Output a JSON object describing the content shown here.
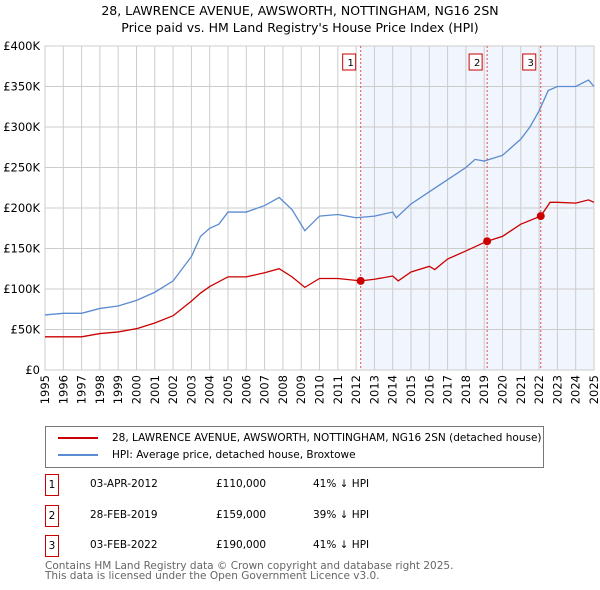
{
  "chart_data": {
    "type": "line",
    "title": "28, LAWRENCE AVENUE, AWSWORTH, NOTTINGHAM, NG16 2SN",
    "subtitle": "Price paid vs. HM Land Registry's House Price Index (HPI)",
    "xlim": [
      1995,
      2025
    ],
    "ylim": [
      0,
      400000
    ],
    "x_ticks": [
      "1995",
      "1996",
      "1997",
      "1998",
      "1999",
      "2000",
      "2001",
      "2002",
      "2003",
      "2004",
      "2005",
      "2006",
      "2007",
      "2008",
      "2009",
      "2010",
      "2011",
      "2012",
      "2013",
      "2014",
      "2015",
      "2016",
      "2017",
      "2018",
      "2019",
      "2020",
      "2021",
      "2022",
      "2023",
      "2024",
      "2025"
    ],
    "y_ticks": [
      {
        "v": 0,
        "l": "£0"
      },
      {
        "v": 50000,
        "l": "£50K"
      },
      {
        "v": 100000,
        "l": "£100K"
      },
      {
        "v": 150000,
        "l": "£150K"
      },
      {
        "v": 200000,
        "l": "£200K"
      },
      {
        "v": 250000,
        "l": "£250K"
      },
      {
        "v": 300000,
        "l": "£300K"
      },
      {
        "v": 350000,
        "l": "£350K"
      },
      {
        "v": 400000,
        "l": "£400K"
      }
    ],
    "grid": true,
    "series": [
      {
        "name": "28, LAWRENCE AVENUE, AWSWORTH, NOTTINGHAM, NG16 2SN (detached house)",
        "color": "#cc0000",
        "x": [
          1995,
          1996,
          1997,
          1998,
          1999,
          2000,
          2001,
          2002,
          2003,
          2003.5,
          2004,
          2005,
          2006,
          2007,
          2007.8,
          2008.5,
          2009.2,
          2010,
          2011,
          2012.25,
          2013,
          2014,
          2014.3,
          2015,
          2016,
          2016.3,
          2017,
          2018,
          2019.16,
          2020,
          2021,
          2022.09,
          2022.6,
          2023,
          2024,
          2024.7,
          2025
        ],
        "y": [
          41000,
          41000,
          41000,
          45000,
          47000,
          51000,
          58000,
          67000,
          85000,
          95000,
          103000,
          115000,
          115000,
          120000,
          125000,
          115000,
          102000,
          113000,
          113000,
          110000,
          112000,
          116000,
          110000,
          121000,
          128000,
          124000,
          137000,
          147000,
          159000,
          165000,
          180000,
          190000,
          207000,
          207000,
          206000,
          210000,
          207000
        ]
      },
      {
        "name": "HPI: Average price, detached house, Broxtowe",
        "color": "#5b8bd0",
        "x": [
          1995,
          1996,
          1997,
          1998,
          1999,
          2000,
          2001,
          2002,
          2003,
          2003.5,
          2004,
          2004.5,
          2005,
          2006,
          2007,
          2007.8,
          2008.5,
          2009.2,
          2010,
          2011,
          2012,
          2013,
          2014,
          2014.2,
          2015,
          2016,
          2017,
          2018,
          2018.5,
          2019,
          2020,
          2021,
          2021.5,
          2022,
          2022.5,
          2023,
          2024,
          2024.7,
          2025
        ],
        "y": [
          68000,
          70000,
          70000,
          76000,
          79000,
          86000,
          96000,
          110000,
          140000,
          165000,
          175000,
          180000,
          195000,
          195000,
          203000,
          213000,
          198000,
          172000,
          190000,
          192000,
          188000,
          190000,
          195000,
          188000,
          205000,
          220000,
          235000,
          250000,
          260000,
          258000,
          265000,
          285000,
          300000,
          320000,
          345000,
          350000,
          350000,
          358000,
          350000
        ]
      }
    ],
    "shaded_from": 2012.25,
    "sales": [
      {
        "n": "1",
        "x": 2012.25,
        "y": 110000,
        "date": "03-APR-2012",
        "price": "£110,000",
        "hpi": "41% ↓ HPI"
      },
      {
        "n": "2",
        "x": 2019.16,
        "y": 159000,
        "date": "28-FEB-2019",
        "price": "£159,000",
        "hpi": "39% ↓ HPI"
      },
      {
        "n": "3",
        "x": 2022.09,
        "y": 190000,
        "date": "03-FEB-2022",
        "price": "£190,000",
        "hpi": "41% ↓ HPI"
      }
    ]
  },
  "footer": [
    "Contains HM Land Registry data © Crown copyright and database right 2025.",
    "This data is licensed under the Open Government Licence v3.0."
  ]
}
